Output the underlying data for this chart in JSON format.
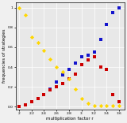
{
  "r_values": [
    2.0,
    2.1,
    2.2,
    2.3,
    2.4,
    2.5,
    2.6,
    2.7,
    2.8,
    2.9,
    3.0,
    3.1,
    3.2,
    3.3,
    3.4,
    3.5,
    3.6
  ],
  "yellow": [
    1.0,
    0.93,
    0.7,
    0.65,
    0.57,
    0.48,
    0.4,
    0.35,
    0.28,
    0.18,
    0.08,
    0.03,
    0.01,
    0.01,
    0.01,
    0.01,
    0.01
  ],
  "blue": [
    0.0,
    0.02,
    0.05,
    0.08,
    0.12,
    0.18,
    0.25,
    0.32,
    0.38,
    0.44,
    0.5,
    0.52,
    0.55,
    0.68,
    0.83,
    0.95,
    1.0
  ],
  "red": [
    0.0,
    0.02,
    0.05,
    0.08,
    0.12,
    0.17,
    0.2,
    0.23,
    0.28,
    0.33,
    0.42,
    0.47,
    0.5,
    0.4,
    0.38,
    0.12,
    0.05
  ],
  "xlabel": "multiplication factor r",
  "ylabel": "frequencies of strategies",
  "xlim": [
    1.95,
    3.68
  ],
  "ylim": [
    -0.03,
    1.05
  ],
  "xticks": [
    2.0,
    2.2,
    2.4,
    2.6,
    2.8,
    3.0,
    3.2,
    3.4,
    3.6
  ],
  "xtick_labels": [
    "2",
    "2.2",
    "2.4",
    "2.6",
    "2.8",
    "3.",
    "3.2",
    "3.4",
    "3.6"
  ],
  "yticks": [
    0.0,
    0.2,
    0.4,
    0.6,
    0.8,
    1.0
  ],
  "yellow_color": "#FFD700",
  "blue_color": "#1414CC",
  "red_color": "#CC0000",
  "bg_color": "#E8E8E8",
  "grid_color": "#FFFFFF",
  "marker_size": 7
}
